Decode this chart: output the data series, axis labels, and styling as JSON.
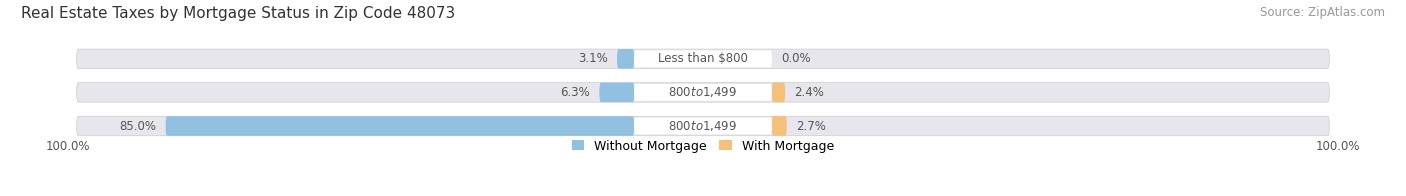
{
  "title": "Real Estate Taxes by Mortgage Status in Zip Code 48073",
  "source": "Source: ZipAtlas.com",
  "bars": [
    {
      "label": "Less than $800",
      "without_mortgage": 3.1,
      "with_mortgage": 0.0
    },
    {
      "label": "$800 to $1,499",
      "without_mortgage": 6.3,
      "with_mortgage": 2.4
    },
    {
      "label": "$800 to $1,499",
      "without_mortgage": 85.0,
      "with_mortgage": 2.7
    }
  ],
  "axis_label_left": "100.0%",
  "axis_label_right": "100.0%",
  "color_without": "#92C0E0",
  "color_with": "#F5C07A",
  "color_bar_bg": "#E6E6EC",
  "color_label_bg": "#FFFFFF",
  "legend_without": "Without Mortgage",
  "legend_with": "With Mortgage",
  "title_fontsize": 11,
  "source_fontsize": 8.5,
  "bar_label_fontsize": 8.5,
  "value_fontsize": 8.5,
  "legend_fontsize": 9,
  "axis_fontsize": 8.5
}
